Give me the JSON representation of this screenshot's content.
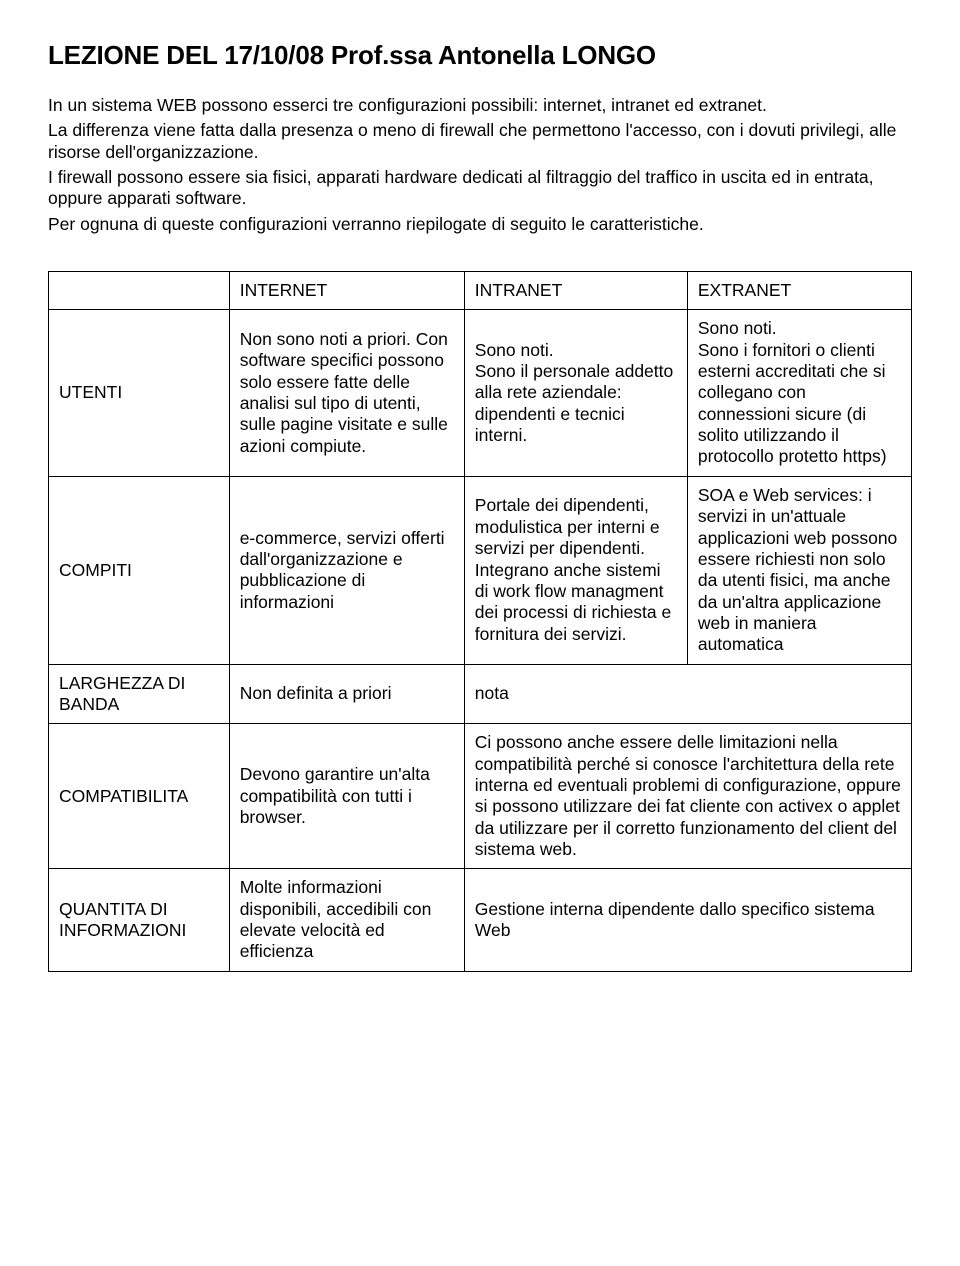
{
  "title": "LEZIONE DEL 17/10/08    Prof.ssa Antonella LONGO",
  "intro": [
    "In un sistema WEB possono esserci tre configurazioni possibili: internet, intranet ed extranet.",
    "La differenza viene fatta dalla presenza o meno di firewall che permettono l'accesso, con i dovuti privilegi, alle risorse dell'organizzazione.",
    "I firewall possono essere sia fisici, apparati hardware dedicati al filtraggio del traffico in uscita ed in entrata, oppure apparati software.",
    "Per ognuna di queste configurazioni verranno riepilogate di seguito le caratteristiche."
  ],
  "table": {
    "headers": [
      "INTERNET",
      "INTRANET",
      "EXTRANET"
    ],
    "rows": {
      "utenti": {
        "label": "UTENTI",
        "internet": "Non sono noti a priori. Con software specifici possono solo essere fatte delle analisi sul tipo di utenti, sulle pagine visitate e sulle azioni compiute.",
        "intranet": "Sono noti.\nSono il personale addetto alla rete aziendale: dipendenti e tecnici interni.",
        "extranet": "Sono noti.\nSono i fornitori o clienti esterni accreditati che si collegano con connessioni sicure (di solito utilizzando il protocollo protetto https)"
      },
      "compiti": {
        "label": "COMPITI",
        "internet": "e-commerce, servizi offerti dall'organizzazione e pubblicazione di informazioni",
        "intranet": "Portale dei dipendenti, modulistica per interni e servizi per dipendenti.\nIntegrano anche sistemi di work flow managment dei processi di richiesta e fornitura dei servizi.",
        "extranet": "SOA e Web services: i servizi in un'attuale applicazioni web possono essere richiesti non solo da utenti fisici, ma anche da un'altra applicazione web in maniera automatica"
      },
      "larghezza": {
        "label": "LARGHEZZA DI BANDA",
        "internet": "Non definita a priori",
        "intranet": "nota"
      },
      "compat": {
        "label": "COMPATIBILITA",
        "internet": "Devono garantire un'alta compatibilità con tutti i browser.",
        "merged": "Ci possono anche essere delle limitazioni nella compatibilità perché si conosce l'architettura della rete interna ed eventuali problemi di configurazione, oppure si possono utilizzare dei fat cliente con activex o applet da utilizzare per il corretto funzionamento del client del sistema web."
      },
      "quantita": {
        "label": "QUANTITA DI INFORMAZIONI",
        "internet": "Molte informazioni disponibili, accedibili con elevate velocità ed efficienza",
        "merged": "Gestione interna dipendente dallo specifico sistema Web"
      }
    }
  }
}
